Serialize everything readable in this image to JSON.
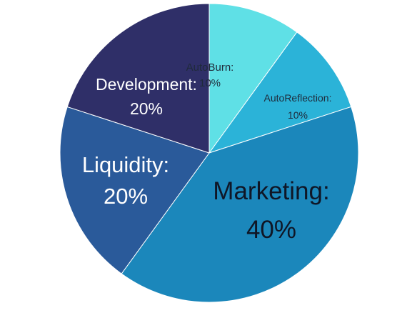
{
  "chart_data": {
    "type": "pie",
    "title": "",
    "slices": [
      {
        "label": "AutoBurn:",
        "value": 10,
        "value_label": "10%",
        "color": "#5fe0e6",
        "text_color": "#1f2a3a"
      },
      {
        "label": "AutoReflection:",
        "value": 10,
        "value_label": "10%",
        "color": "#2bb3d8",
        "text_color": "#1f2a3a"
      },
      {
        "label": "Marketing:",
        "value": 40,
        "value_label": "40%",
        "color": "#1b87bb",
        "text_color": "#0f1626"
      },
      {
        "label": "Liquidity:",
        "value": 20,
        "value_label": "20%",
        "color": "#2a5a9a",
        "text_color": "#ffffff"
      },
      {
        "label": "Development:",
        "value": 20,
        "value_label": "20%",
        "color": "#2f2f68",
        "text_color": "#ffffff"
      }
    ],
    "start_angle_deg": 0,
    "direction": "clockwise",
    "legend": "none"
  }
}
